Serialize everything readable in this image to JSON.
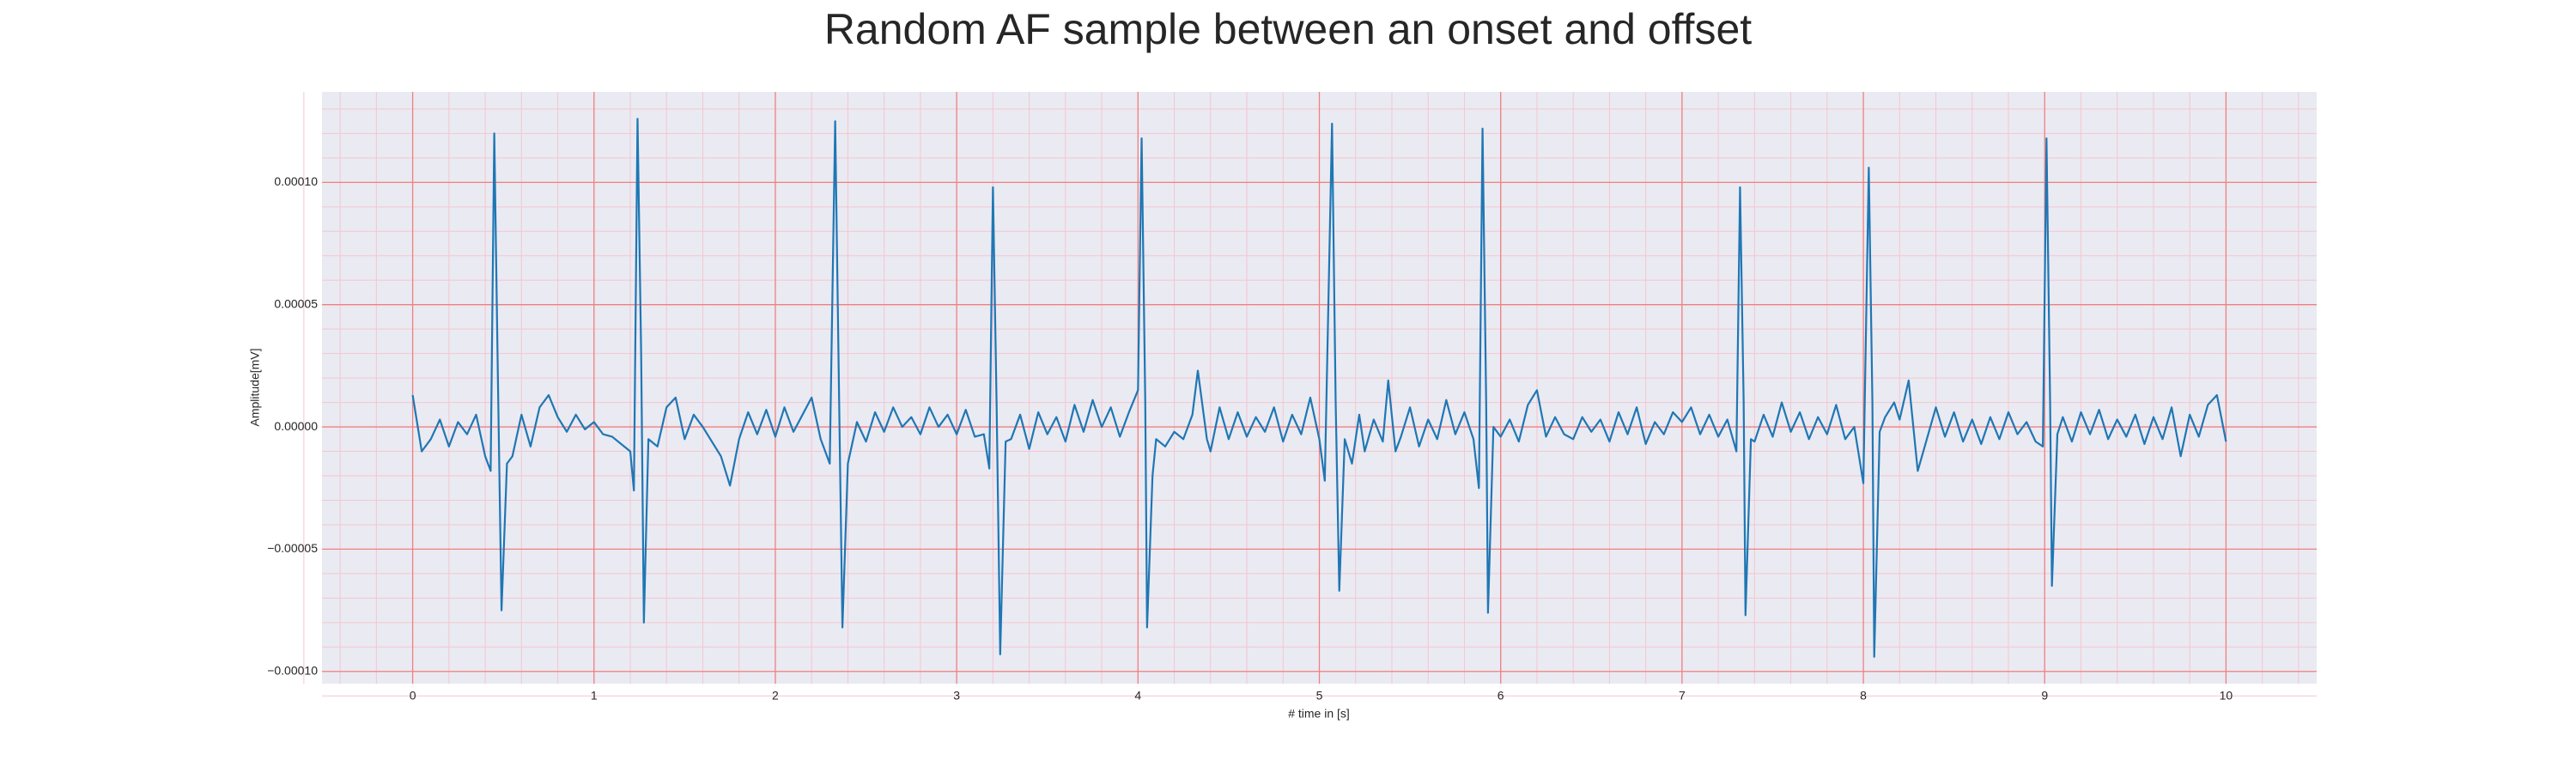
{
  "chart_data": {
    "type": "line",
    "title": "Random AF sample between an onset and offset",
    "xlabel": "# time in [s]",
    "ylabel": "Amplitude[mV]",
    "xlim": [
      -0.5,
      10.5
    ],
    "xticks": [
      0,
      1,
      2,
      3,
      4,
      5,
      6,
      7,
      8,
      9,
      10
    ],
    "ylim": [
      -0.000105,
      0.000137
    ],
    "yticks": [
      {
        "value": -0.0001,
        "label": "−0.00010"
      },
      {
        "value": -5e-05,
        "label": "−0.00005"
      },
      {
        "value": 0,
        "label": "0.00000"
      },
      {
        "value": 5e-05,
        "label": "0.00005"
      },
      {
        "value": 0.0001,
        "label": "0.00010"
      }
    ],
    "grid": true,
    "minor_grid": true,
    "grid_color": "#f08080",
    "minor_grid_color": "#f4c6cf",
    "background": "#eaeaf2",
    "x": [
      0,
      0.05,
      0.1,
      0.15,
      0.2,
      0.25,
      0.3,
      0.35,
      0.4,
      0.43,
      0.45,
      0.47,
      0.49,
      0.52,
      0.55,
      0.6,
      0.65,
      0.7,
      0.75,
      0.8,
      0.85,
      0.9,
      0.95,
      1.0,
      1.05,
      1.1,
      1.15,
      1.2,
      1.22,
      1.24,
      1.26,
      1.275,
      1.3,
      1.35,
      1.4,
      1.45,
      1.5,
      1.55,
      1.6,
      1.7,
      1.75,
      1.8,
      1.85,
      1.9,
      1.95,
      2.0,
      2.05,
      2.1,
      2.15,
      2.2,
      2.25,
      2.3,
      2.33,
      2.35,
      2.37,
      2.4,
      2.45,
      2.5,
      2.55,
      2.6,
      2.65,
      2.7,
      2.75,
      2.8,
      2.85,
      2.9,
      2.95,
      3.0,
      3.05,
      3.1,
      3.15,
      3.18,
      3.2,
      3.22,
      3.24,
      3.27,
      3.3,
      3.35,
      3.4,
      3.45,
      3.5,
      3.55,
      3.6,
      3.65,
      3.7,
      3.75,
      3.8,
      3.85,
      3.9,
      3.95,
      4.0,
      4.02,
      4.04,
      4.05,
      4.08,
      4.1,
      4.15,
      4.2,
      4.25,
      4.3,
      4.33,
      4.38,
      4.4,
      4.45,
      4.5,
      4.55,
      4.6,
      4.65,
      4.7,
      4.75,
      4.8,
      4.85,
      4.9,
      4.95,
      5.0,
      5.03,
      5.07,
      5.09,
      5.11,
      5.14,
      5.18,
      5.22,
      5.25,
      5.3,
      5.35,
      5.38,
      5.42,
      5.45,
      5.5,
      5.55,
      5.6,
      5.65,
      5.7,
      5.75,
      5.8,
      5.85,
      5.88,
      5.9,
      5.92,
      5.93,
      5.96,
      6.0,
      6.05,
      6.1,
      6.15,
      6.2,
      6.25,
      6.3,
      6.35,
      6.4,
      6.45,
      6.5,
      6.55,
      6.6,
      6.65,
      6.7,
      6.75,
      6.8,
      6.85,
      6.9,
      6.95,
      7.0,
      7.05,
      7.1,
      7.15,
      7.2,
      7.25,
      7.3,
      7.32,
      7.34,
      7.35,
      7.38,
      7.4,
      7.45,
      7.5,
      7.55,
      7.6,
      7.65,
      7.7,
      7.75,
      7.8,
      7.85,
      7.9,
      7.95,
      8.0,
      8.03,
      8.05,
      8.06,
      8.09,
      8.12,
      8.17,
      8.2,
      8.25,
      8.3,
      8.35,
      8.4,
      8.45,
      8.5,
      8.55,
      8.6,
      8.65,
      8.7,
      8.75,
      8.8,
      8.85,
      8.9,
      8.95,
      8.99,
      9.01,
      9.03,
      9.04,
      9.07,
      9.1,
      9.15,
      9.2,
      9.25,
      9.3,
      9.35,
      9.4,
      9.45,
      9.5,
      9.55,
      9.6,
      9.65,
      9.7,
      9.75,
      9.8,
      9.85,
      9.9,
      9.95,
      10.0
    ],
    "series": [
      {
        "color": "#1f77b4",
        "values": [
          1.3e-05,
          -1e-05,
          -5e-06,
          3e-06,
          -8e-06,
          2e-06,
          -3e-06,
          5e-06,
          -1.2e-05,
          -1.8e-05,
          0.00012,
          2e-05,
          -7.5e-05,
          -1.5e-05,
          -1.2e-05,
          5e-06,
          -8e-06,
          8e-06,
          1.3e-05,
          4e-06,
          -2e-06,
          5e-06,
          -1e-06,
          2e-06,
          -3e-06,
          -4e-06,
          -7e-06,
          -1e-05,
          -2.6e-05,
          0.000126,
          3e-05,
          -8e-05,
          -5e-06,
          -8e-06,
          8e-06,
          1.2e-05,
          -5e-06,
          5e-06,
          0,
          -1.2e-05,
          -2.4e-05,
          -5e-06,
          6e-06,
          -3e-06,
          7e-06,
          -4e-06,
          8e-06,
          -2e-06,
          5e-06,
          1.2e-05,
          -5e-06,
          -1.5e-05,
          0.000125,
          2e-05,
          -8.2e-05,
          -1.5e-05,
          2e-06,
          -6e-06,
          6e-06,
          -2e-06,
          8e-06,
          0,
          4e-06,
          -3e-06,
          8e-06,
          0,
          5e-06,
          -3e-06,
          7e-06,
          -4e-06,
          -3e-06,
          -1.7e-05,
          9.8e-05,
          1e-05,
          -9.3e-05,
          -6e-06,
          -5e-06,
          5e-06,
          -9e-06,
          6e-06,
          -3e-06,
          4e-06,
          -6e-06,
          9e-06,
          -2e-06,
          1.1e-05,
          0,
          8e-06,
          -4e-06,
          6e-06,
          1.5e-05,
          0.000118,
          1e-05,
          -8.2e-05,
          -2e-05,
          -5e-06,
          -8e-06,
          -2e-06,
          -5e-06,
          5e-06,
          2.3e-05,
          -5e-06,
          -1e-05,
          8e-06,
          -5e-06,
          6e-06,
          -4e-06,
          4e-06,
          -2e-06,
          8e-06,
          -6e-06,
          5e-06,
          -3e-06,
          1.2e-05,
          -5e-06,
          -2.2e-05,
          0.000124,
          1e-05,
          -6.7e-05,
          -5e-06,
          -1.5e-05,
          5e-06,
          -1e-05,
          3e-06,
          -6e-06,
          1.9e-05,
          -1e-05,
          -4e-06,
          8e-06,
          -8e-06,
          3e-06,
          -5e-06,
          1.1e-05,
          -3e-06,
          6e-06,
          -5e-06,
          -2.5e-05,
          0.000122,
          1e-05,
          -7.6e-05,
          0,
          -4e-06,
          3e-06,
          -6e-06,
          9e-06,
          1.5e-05,
          -4e-06,
          4e-06,
          -3e-06,
          -5e-06,
          4e-06,
          -2e-06,
          3e-06,
          -6e-06,
          6e-06,
          -3e-06,
          8e-06,
          -7e-06,
          2e-06,
          -3e-06,
          6e-06,
          2e-06,
          8e-06,
          -3e-06,
          5e-06,
          -4e-06,
          3e-06,
          -1e-05,
          9.8e-05,
          1e-05,
          -7.7e-05,
          -5e-06,
          -6e-06,
          5e-06,
          -4e-06,
          1e-05,
          -2e-06,
          6e-06,
          -5e-06,
          4e-06,
          -3e-06,
          9e-06,
          -5e-06,
          0,
          -2.3e-05,
          0.000106,
          1e-05,
          -9.4e-05,
          -2e-06,
          4e-06,
          1e-05,
          3e-06,
          1.9e-05,
          -1.8e-05,
          -5e-06,
          8e-06,
          -4e-06,
          6e-06,
          -6e-06,
          3e-06,
          -7e-06,
          4e-06,
          -5e-06,
          6e-06,
          -3e-06,
          2e-06,
          -6e-06,
          -8e-06,
          0.000118,
          1e-05,
          -6.5e-05,
          -3e-06,
          4e-06,
          -6e-06,
          6e-06,
          -3e-06,
          7e-06,
          -5e-06,
          3e-06,
          -4e-06,
          5e-06,
          -7e-06,
          4e-06,
          -5e-06,
          8e-06,
          -1.2e-05,
          5e-06,
          -4e-06,
          9e-06,
          1.3e-05,
          -6e-06
        ]
      }
    ]
  }
}
